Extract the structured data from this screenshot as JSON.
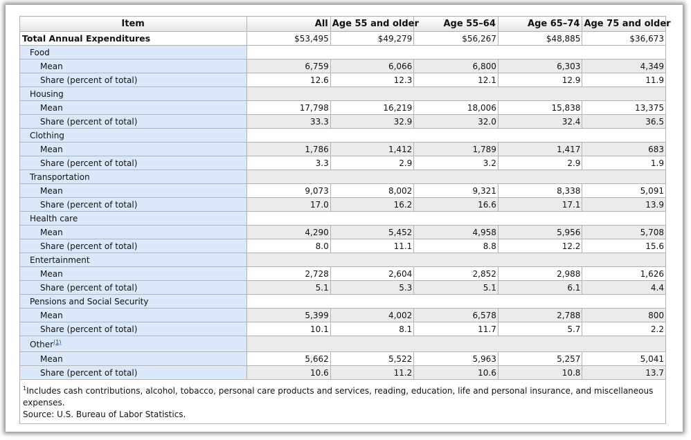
{
  "headers": [
    "Item",
    "All",
    "Age 55 and older",
    "Age 55–64",
    "Age 65–74",
    "Age 75 and older"
  ],
  "total": {
    "label": "Total Annual Expenditures",
    "values": [
      "$53,495",
      "$49,279",
      "$56,267",
      "$48,885",
      "$36,673"
    ]
  },
  "categories": [
    {
      "name": "Food",
      "mean_label": "Mean",
      "mean": [
        "6,759",
        "6,066",
        "6,800",
        "6,303",
        "4,349"
      ],
      "share_label": "Share (percent of total)",
      "share": [
        "12.6",
        "12.3",
        "12.1",
        "12.9",
        "11.9"
      ]
    },
    {
      "name": "Housing",
      "mean_label": "Mean",
      "mean": [
        "17,798",
        "16,219",
        "18,006",
        "15,838",
        "13,375"
      ],
      "share_label": "Share (percent of total)",
      "share": [
        "33.3",
        "32.9",
        "32.0",
        "32.4",
        "36.5"
      ]
    },
    {
      "name": "Clothing",
      "mean_label": "Mean",
      "mean": [
        "1,786",
        "1,412",
        "1,789",
        "1,417",
        "683"
      ],
      "share_label": "Share (percent of total)",
      "share": [
        "3.3",
        "2.9",
        "3.2",
        "2.9",
        "1.9"
      ]
    },
    {
      "name": "Transportation",
      "mean_label": "Mean",
      "mean": [
        "9,073",
        "8,002",
        "9,321",
        "8,338",
        "5,091"
      ],
      "share_label": "Share (percent of total)",
      "share": [
        "17.0",
        "16.2",
        "16.6",
        "17.1",
        "13.9"
      ]
    },
    {
      "name": "Health care",
      "mean_label": "Mean",
      "mean": [
        "4,290",
        "5,452",
        "4,958",
        "5,956",
        "5,708"
      ],
      "share_label": "Share (percent of total)",
      "share": [
        "8.0",
        "11.1",
        "8.8",
        "12.2",
        "15.6"
      ]
    },
    {
      "name": "Entertainment",
      "mean_label": "Mean",
      "mean": [
        "2,728",
        "2,604",
        "2,852",
        "2,988",
        "1,626"
      ],
      "share_label": "Share (percent of total)",
      "share": [
        "5.1",
        "5.3",
        "5.1",
        "6.1",
        "4.4"
      ]
    },
    {
      "name": "Pensions and Social Security",
      "mean_label": "Mean",
      "mean": [
        "5,399",
        "4,002",
        "6,578",
        "2,788",
        "800"
      ],
      "share_label": "Share (percent of total)",
      "share": [
        "10.1",
        "8.1",
        "11.7",
        "5.7",
        "2.2"
      ]
    },
    {
      "name": "Other",
      "footnote_ref": "(1)",
      "mean_label": "Mean",
      "mean": [
        "5,662",
        "5,522",
        "5,963",
        "5,257",
        "5,041"
      ],
      "share_label": "Share (percent of total)",
      "share": [
        "10.6",
        "11.2",
        "10.6",
        "10.8",
        "13.7"
      ]
    }
  ],
  "footnote": {
    "marker": "1",
    "text": "Includes cash contributions, alcohol, tobacco, personal care products and services, reading, education, life and personal insurance, and miscellaneous expenses."
  },
  "source": "Source: U.S. Bureau of Labor Statistics."
}
